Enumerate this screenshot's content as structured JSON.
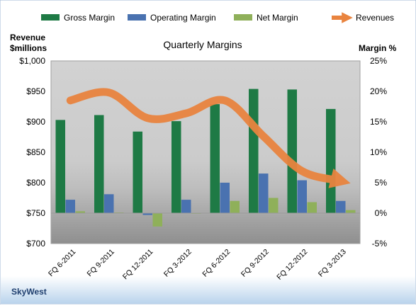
{
  "chart_data": {
    "type": "bar",
    "title": "Quarterly Margins",
    "left_axis_label_line1": "Revenue",
    "left_axis_label_line2": "$millions",
    "right_axis_label": "Margin %",
    "footer": "SkyWest",
    "categories": [
      "FQ 6-2011",
      "FQ 9-2011",
      "FQ 12-2011",
      "FQ 3-2012",
      "FQ 6-2012",
      "FQ 9-2012",
      "FQ 12-2012",
      "FQ 3-2013"
    ],
    "left_axis": {
      "range": [
        700,
        1000
      ],
      "ticks": [
        700,
        750,
        800,
        850,
        900,
        950,
        1000
      ],
      "tick_labels": [
        "$700",
        "$750",
        "$800",
        "$850",
        "$900",
        "$950",
        "$1,000"
      ]
    },
    "right_axis": {
      "range": [
        -5,
        25
      ],
      "ticks": [
        -5,
        0,
        5,
        10,
        15,
        20,
        25
      ],
      "tick_labels": [
        "-5%",
        "0%",
        "5%",
        "10%",
        "15%",
        "20%",
        "25%"
      ]
    },
    "series": [
      {
        "name": "Gross Margin",
        "kind": "bar",
        "axis": "right",
        "color": "#1e7a45",
        "values": [
          15.3,
          16.1,
          13.4,
          15.1,
          17.9,
          20.4,
          20.3,
          17.1
        ]
      },
      {
        "name": "Operating Margin",
        "kind": "bar",
        "axis": "right",
        "color": "#4a72b0",
        "values": [
          2.2,
          3.1,
          -0.3,
          2.2,
          5.0,
          6.5,
          5.4,
          2.0
        ]
      },
      {
        "name": "Net Margin",
        "kind": "bar",
        "axis": "right",
        "color": "#8fb05a",
        "values": [
          0.3,
          0.1,
          -2.2,
          0.0,
          2.0,
          2.5,
          1.8,
          0.5
        ]
      },
      {
        "name": "Revenues",
        "kind": "line",
        "axis": "left",
        "color": "#e9843f",
        "values": [
          935,
          948,
          906,
          914,
          935,
          876,
          819,
          803
        ]
      }
    ],
    "legend_position": "top",
    "grid": false
  }
}
